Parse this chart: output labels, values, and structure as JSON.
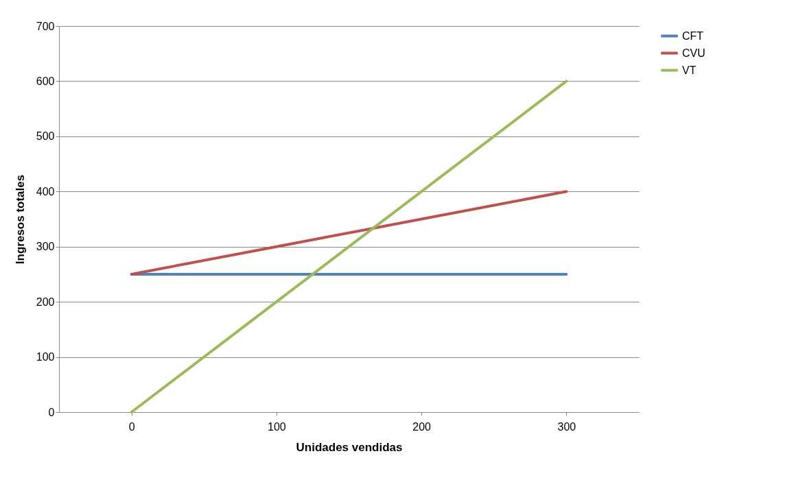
{
  "chart_data": {
    "type": "line",
    "xlabel": "Unidades vendidas",
    "ylabel": "Ingresos  totales",
    "x": [
      0,
      100,
      200,
      300
    ],
    "xlim": [
      -50,
      350
    ],
    "xticks": [
      0,
      100,
      200,
      300
    ],
    "ylim": [
      0,
      700
    ],
    "yticks": [
      0,
      100,
      200,
      300,
      400,
      500,
      600,
      700
    ],
    "series": [
      {
        "name": "CFT",
        "color": "#4f81bd",
        "values": [
          250,
          250,
          250,
          250
        ]
      },
      {
        "name": "CVU",
        "color": "#c0504d",
        "values": [
          250,
          300,
          350,
          400
        ]
      },
      {
        "name": "VT",
        "color": "#9bbb59",
        "values": [
          0,
          200,
          400,
          600
        ]
      }
    ],
    "grid": "y",
    "legend": "right",
    "marker": "none",
    "line_style": "solid"
  }
}
